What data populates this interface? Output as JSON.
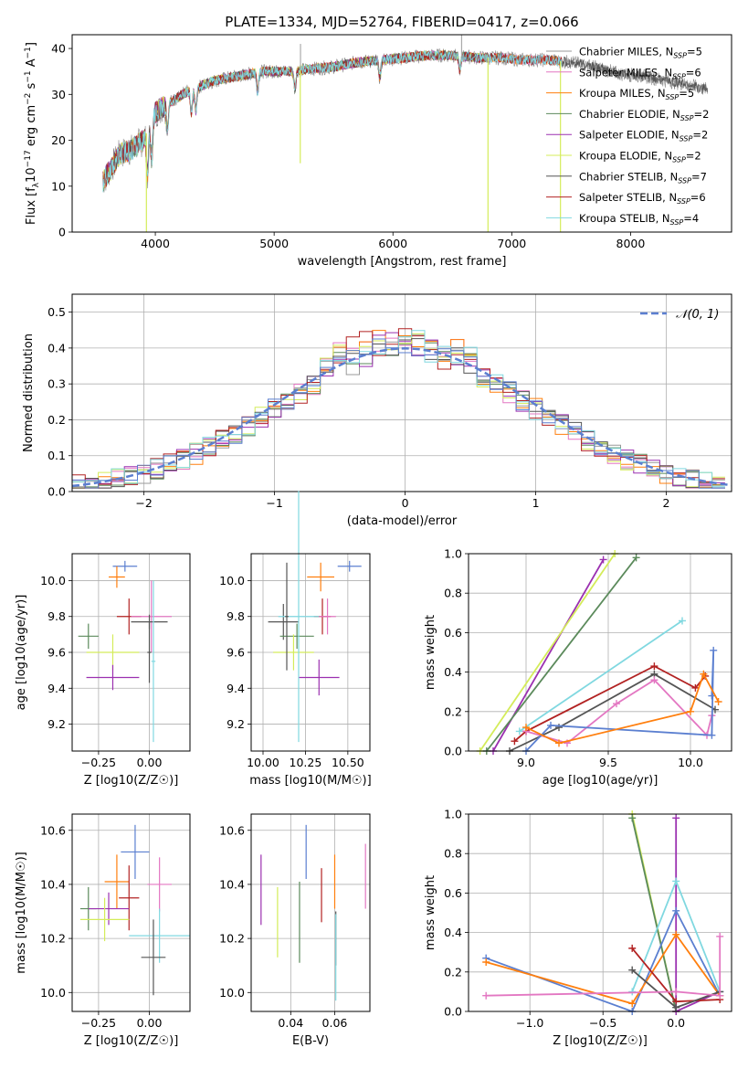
{
  "figure_title": "PLATE=1334, MJD=52764, FIBERID=0417, z=0.066",
  "colors": {
    "Chabrier MILES": "#999999",
    "Salpeter MILES": "#e377c2",
    "Kroupa MILES": "#ff7f0e",
    "Chabrier ELODIE": "#5b8a5b",
    "Salpeter ELODIE": "#9b30b0",
    "Kroupa ELODIE": "#d4ec5a",
    "Chabrier STELIB": "#555555",
    "Salpeter STELIB": "#b22222",
    "Kroupa STELIB": "#80d8e0",
    "blue": "#5b7fd0",
    "orange": "#e07010"
  },
  "chart_data": [
    {
      "id": "spectrum",
      "type": "line",
      "title": "PLATE=1334, MJD=52764, FIBERID=0417, z=0.066",
      "xlabel": "wavelength [Angstrom, rest frame]",
      "ylabel": "Flux [f_λ 10^-17 erg cm^-2 s^-1 A^-1]",
      "xlim": [
        3300,
        8850
      ],
      "ylim": [
        0,
        43
      ],
      "xticks": [
        4000,
        5000,
        6000,
        7000,
        8000
      ],
      "yticks": [
        0,
        10,
        20,
        30,
        40
      ],
      "legend": "top-right",
      "continuum": {
        "x": [
          3560,
          3700,
          3800,
          3900,
          4000,
          4100,
          4300,
          4500,
          4700,
          4900,
          5100,
          5300,
          5500,
          5700,
          5900,
          6100,
          6300,
          6500,
          6700,
          6900,
          7100,
          7300,
          7500,
          7700,
          7900,
          8100,
          8300,
          8500,
          8650
        ],
        "y": [
          11,
          17,
          18,
          20,
          26,
          28,
          31,
          33,
          34,
          35,
          35,
          35.5,
          36,
          37,
          37.5,
          38,
          38.5,
          38.5,
          38,
          38,
          37.5,
          37.5,
          37,
          36,
          34.5,
          34,
          33,
          32,
          31
        ]
      },
      "absorption_features": [
        {
          "x": 3934,
          "depth": 10
        },
        {
          "x": 3969,
          "depth": 8
        },
        {
          "x": 4102,
          "depth": 6
        },
        {
          "x": 4304,
          "depth": 5
        },
        {
          "x": 4341,
          "depth": 5
        },
        {
          "x": 4861,
          "depth": 4
        },
        {
          "x": 5175,
          "depth": 4
        },
        {
          "x": 5890,
          "depth": 4
        },
        {
          "x": 6563,
          "depth": 3
        }
      ],
      "spikes": [
        {
          "x": 3925,
          "y": 0
        },
        {
          "x": 5220,
          "y": 15
        },
        {
          "x": 5222,
          "y": 41
        },
        {
          "x": 6800,
          "y": 0
        },
        {
          "x": 7410,
          "y": 0
        },
        {
          "x": 6578,
          "y": 43
        }
      ],
      "series": [
        {
          "name": "Chabrier MILES, N_SSP=5",
          "label_main": "Chabrier MILES, N",
          "label_sub": "SSP",
          "label_end": "=5"
        },
        {
          "name": "Salpeter MILES, N_SSP=6",
          "label_main": "Salpeter MILES, N",
          "label_sub": "SSP",
          "label_end": "=6"
        },
        {
          "name": "Kroupa MILES, N_SSP=5",
          "label_main": "Kroupa MILES, N",
          "label_sub": "SSP",
          "label_end": "=5"
        },
        {
          "name": "Chabrier ELODIE, N_SSP=2",
          "label_main": "Chabrier ELODIE, N",
          "label_sub": "SSP",
          "label_end": "=2"
        },
        {
          "name": "Salpeter ELODIE, N_SSP=2",
          "label_main": "Salpeter ELODIE, N",
          "label_sub": "SSP",
          "label_end": "=2"
        },
        {
          "name": "Kroupa ELODIE, N_SSP=2",
          "label_main": "Kroupa ELODIE, N",
          "label_sub": "SSP",
          "label_end": "=2"
        },
        {
          "name": "Chabrier STELIB, N_SSP=7",
          "label_main": "Chabrier STELIB, N",
          "label_sub": "SSP",
          "label_end": "=7"
        },
        {
          "name": "Salpeter STELIB, N_SSP=6",
          "label_main": "Salpeter STELIB, N",
          "label_sub": "SSP",
          "label_end": "=6"
        },
        {
          "name": "Kroupa STELIB, N_SSP=4",
          "label_main": "Kroupa STELIB, N",
          "label_sub": "SSP",
          "label_end": "=4"
        }
      ]
    },
    {
      "id": "residuals",
      "type": "histogram",
      "xlabel": "(data-model)/error",
      "ylabel": "Normed distribution",
      "xlim": [
        -2.55,
        2.5
      ],
      "ylim": [
        0,
        0.55
      ],
      "xticks": [
        -2,
        -1,
        0,
        1,
        2
      ],
      "yticks": [
        0.0,
        0.1,
        0.2,
        0.3,
        0.4,
        0.5
      ],
      "legend": "top-right",
      "reference": {
        "name": "𝒩(0, 1)",
        "mean": 0,
        "sigma": 1
      },
      "bin_width": 0.1,
      "bin_start": -2.55,
      "hist_colors": [
        "#999999",
        "#e377c2",
        "#ff7f0e",
        "#5b8a5b",
        "#9b30b0",
        "#d4ec5a",
        "#555555",
        "#b22222",
        "#80d8e0",
        "#5b7fd0"
      ],
      "envelope_peak": [
        0.5,
        0.45,
        0.49,
        0.52,
        0.49,
        0.48,
        0.48,
        0.5,
        0.47,
        0.46
      ]
    },
    {
      "id": "age-vs-Z",
      "type": "errorbar",
      "xlabel": "Z [log10(Z/Z☉)]",
      "ylabel": "age [log10(age/yr)]",
      "xlim": [
        -0.38,
        0.2
      ],
      "ylim": [
        9.05,
        10.15
      ],
      "xticks": [
        -0.25,
        0.0
      ],
      "xticklabels": [
        "−0.25",
        "0.00"
      ],
      "yticks": [
        9.2,
        9.4,
        9.6,
        9.8,
        10.0
      ],
      "points": [
        {
          "x": -0.12,
          "y": 10.08,
          "xerr": 0.06,
          "yerr": 0.03,
          "color": "#5b7fd0"
        },
        {
          "x": -0.16,
          "y": 10.02,
          "xerr": 0.04,
          "yerr": 0.06,
          "color": "#ff7f0e"
        },
        {
          "x": -0.1,
          "y": 9.8,
          "xerr": 0.06,
          "yerr": 0.1,
          "color": "#b22222"
        },
        {
          "x": 0.01,
          "y": 9.8,
          "xerr": 0.1,
          "yerr": 0.2,
          "color": "#e377c2"
        },
        {
          "x": 0.0,
          "y": 9.77,
          "xerr": 0.09,
          "yerr": 0.04,
          "color": "#555555"
        },
        {
          "x": -0.3,
          "y": 9.69,
          "xerr": 0.05,
          "yerr": 0.07,
          "color": "#5b8a5b"
        },
        {
          "x": -0.18,
          "y": 9.6,
          "xerr": 0.13,
          "yerr": 0.1,
          "color": "#d4ec5a"
        },
        {
          "x": -0.18,
          "y": 9.46,
          "xerr": 0.13,
          "yerr": 0.07,
          "color": "#9b30b0"
        },
        {
          "x": 0.02,
          "y": 9.55,
          "xerr": 0.01,
          "yerr": 0.45,
          "color": "#80d8e0"
        },
        {
          "x": 0.0,
          "y": 9.6,
          "xerr": 0.01,
          "yerr": 0.17,
          "color": "#555555"
        }
      ]
    },
    {
      "id": "age-vs-mass",
      "type": "errorbar",
      "xlabel": "mass [log10(M/M☉)]",
      "ylabel": "",
      "xlim": [
        9.93,
        10.63
      ],
      "ylim": [
        9.05,
        10.15
      ],
      "xticks": [
        10.0,
        10.25,
        10.5
      ],
      "xticklabels": [
        "10.00",
        "10.25",
        "10.50"
      ],
      "yticks": [
        9.2,
        9.4,
        9.6,
        9.8,
        10.0
      ],
      "points": [
        {
          "x": 10.51,
          "y": 10.08,
          "xerr": 0.07,
          "yerr": 0.03,
          "color": "#5b7fd0"
        },
        {
          "x": 10.34,
          "y": 10.02,
          "xerr": 0.08,
          "yerr": 0.08,
          "color": "#ff7f0e"
        },
        {
          "x": 10.35,
          "y": 9.8,
          "xerr": 0.05,
          "yerr": 0.1,
          "color": "#b22222"
        },
        {
          "x": 10.38,
          "y": 9.8,
          "xerr": 0.05,
          "yerr": 0.1,
          "color": "#e377c2"
        },
        {
          "x": 10.12,
          "y": 9.77,
          "xerr": 0.09,
          "yerr": 0.1,
          "color": "#555555"
        },
        {
          "x": 10.2,
          "y": 9.69,
          "xerr": 0.1,
          "yerr": 0.07,
          "color": "#5b8a5b"
        },
        {
          "x": 10.18,
          "y": 9.6,
          "xerr": 0.12,
          "yerr": 0.1,
          "color": "#d4ec5a"
        },
        {
          "x": 10.33,
          "y": 9.46,
          "xerr": 0.12,
          "yerr": 0.1,
          "color": "#9b30b0"
        },
        {
          "x": 10.21,
          "y": 9.8,
          "xerr": 0.12,
          "yerr": 0.7,
          "color": "#80d8e0"
        },
        {
          "x": 10.14,
          "y": 9.8,
          "xerr": 0.01,
          "yerr": 0.3,
          "color": "#555555"
        }
      ]
    },
    {
      "id": "weight-vs-age",
      "type": "line",
      "xlabel": "age [log10(age/yr)]",
      "ylabel": "mass weight",
      "xlim": [
        8.65,
        10.25
      ],
      "ylim": [
        0,
        1.0
      ],
      "xticks": [
        9.0,
        9.5,
        10.0
      ],
      "xticklabels": [
        "9.0",
        "9.5",
        "10.0"
      ],
      "yticks": [
        0.0,
        0.2,
        0.4,
        0.6,
        0.8,
        1.0
      ],
      "series": [
        {
          "color": "#9b30b0",
          "x": [
            8.8,
            9.47
          ],
          "y": [
            0.0,
            0.97
          ]
        },
        {
          "color": "#d4ec5a",
          "x": [
            8.72,
            9.54
          ],
          "y": [
            0.0,
            1.0
          ]
        },
        {
          "color": "#5b8a5b",
          "x": [
            8.76,
            9.67
          ],
          "y": [
            0.0,
            0.98
          ]
        },
        {
          "color": "#80d8e0",
          "x": [
            8.96,
            9.95
          ],
          "y": [
            0.1,
            0.66
          ]
        },
        {
          "color": "#b22222",
          "x": [
            8.93,
            9.0,
            9.78,
            10.03,
            10.09
          ],
          "y": [
            0.05,
            0.1,
            0.43,
            0.32,
            0.38
          ]
        },
        {
          "color": "#555555",
          "x": [
            8.9,
            9.2,
            9.78,
            10.15
          ],
          "y": [
            0.0,
            0.12,
            0.39,
            0.21
          ]
        },
        {
          "color": "#e377c2",
          "x": [
            9.0,
            9.25,
            9.55,
            9.78,
            10.1,
            10.13
          ],
          "y": [
            0.1,
            0.04,
            0.24,
            0.36,
            0.08,
            0.18
          ]
        },
        {
          "color": "#5b7fd0",
          "x": [
            9.0,
            9.15,
            10.13,
            10.14,
            10.13
          ],
          "y": [
            0.0,
            0.13,
            0.08,
            0.51,
            0.28
          ]
        },
        {
          "color": "#ff7f0e",
          "x": [
            9.0,
            9.2,
            10.0,
            10.08,
            10.17
          ],
          "y": [
            0.12,
            0.04,
            0.2,
            0.39,
            0.25
          ]
        }
      ]
    },
    {
      "id": "mass-vs-Z",
      "type": "errorbar",
      "xlabel": "Z [log10(Z/Z☉)]",
      "ylabel": "mass [log10(M/M☉)]",
      "xlim": [
        -0.38,
        0.2
      ],
      "ylim": [
        9.93,
        10.66
      ],
      "xticks": [
        -0.25,
        0.0
      ],
      "xticklabels": [
        "−0.25",
        "0.00"
      ],
      "yticks": [
        10.0,
        10.2,
        10.4,
        10.6
      ],
      "points": [
        {
          "x": -0.07,
          "y": 10.52,
          "xerr": 0.07,
          "yerr": 0.1,
          "color": "#5b7fd0"
        },
        {
          "x": -0.16,
          "y": 10.41,
          "xerr": 0.06,
          "yerr": 0.1,
          "color": "#ff7f0e"
        },
        {
          "x": 0.05,
          "y": 10.4,
          "xerr": 0.06,
          "yerr": 0.1,
          "color": "#e377c2"
        },
        {
          "x": -0.1,
          "y": 10.35,
          "xerr": 0.05,
          "yerr": 0.12,
          "color": "#b22222"
        },
        {
          "x": -0.3,
          "y": 10.31,
          "xerr": 0.04,
          "yerr": 0.08,
          "color": "#5b8a5b"
        },
        {
          "x": -0.2,
          "y": 10.31,
          "xerr": 0.1,
          "yerr": 0.06,
          "color": "#9b30b0"
        },
        {
          "x": -0.22,
          "y": 10.27,
          "xerr": 0.12,
          "yerr": 0.08,
          "color": "#d4ec5a"
        },
        {
          "x": 0.05,
          "y": 10.21,
          "xerr": 0.15,
          "yerr": 0.1,
          "color": "#80d8e0"
        },
        {
          "x": 0.02,
          "y": 10.13,
          "xerr": 0.06,
          "yerr": 0.14,
          "color": "#555555"
        }
      ]
    },
    {
      "id": "mass-vs-EBV",
      "type": "errorbar",
      "xlabel": "E(B-V)",
      "ylabel": "",
      "xlim": [
        0.022,
        0.076
      ],
      "ylim": [
        9.93,
        10.66
      ],
      "xticks": [
        0.04,
        0.06
      ],
      "xticklabels": [
        "0.04",
        "0.06"
      ],
      "yticks": [
        10.0,
        10.2,
        10.4,
        10.6
      ],
      "points": [
        {
          "x": 0.0265,
          "y": 10.38,
          "xerr": 0,
          "yerr": 0.13,
          "color": "#9b30b0"
        },
        {
          "x": 0.034,
          "y": 10.26,
          "xerr": 0,
          "yerr": 0.13,
          "color": "#d4ec5a"
        },
        {
          "x": 0.044,
          "y": 10.26,
          "xerr": 0,
          "yerr": 0.15,
          "color": "#5b8a5b"
        },
        {
          "x": 0.047,
          "y": 10.52,
          "xerr": 0,
          "yerr": 0.1,
          "color": "#5b7fd0"
        },
        {
          "x": 0.054,
          "y": 10.36,
          "xerr": 0,
          "yerr": 0.1,
          "color": "#b22222"
        },
        {
          "x": 0.06,
          "y": 10.41,
          "xerr": 0,
          "yerr": 0.1,
          "color": "#ff7f0e"
        },
        {
          "x": 0.0605,
          "y": 10.2,
          "xerr": 0,
          "yerr": 0.1,
          "color": "#555555"
        },
        {
          "x": 0.0605,
          "y": 10.13,
          "xerr": 0,
          "yerr": 0.16,
          "color": "#80d8e0"
        },
        {
          "x": 0.074,
          "y": 10.43,
          "xerr": 0,
          "yerr": 0.12,
          "color": "#e377c2"
        }
      ]
    },
    {
      "id": "weight-vs-Z",
      "type": "line",
      "xlabel": "Z [log10(Z/Z☉)]",
      "ylabel": "mass weight",
      "xlim": [
        -1.42,
        0.38
      ],
      "ylim": [
        0,
        1.0
      ],
      "xticks": [
        -1.0,
        -0.5,
        0.0
      ],
      "xticklabels": [
        "−1.0",
        "−0.5",
        "0.0"
      ],
      "yticks": [
        0.0,
        0.2,
        0.4,
        0.6,
        0.8,
        1.0
      ],
      "series": [
        {
          "color": "#d4ec5a",
          "x": [
            -0.3,
            0.0
          ],
          "y": [
            1.0,
            0.0
          ]
        },
        {
          "color": "#5b8a5b",
          "x": [
            -0.3,
            0.0
          ],
          "y": [
            0.98,
            0.0
          ]
        },
        {
          "color": "#9b30b0",
          "x": [
            0.0,
            0.0,
            0.3
          ],
          "y": [
            0.98,
            0.0,
            0.1
          ]
        },
        {
          "color": "#80d8e0",
          "x": [
            -0.3,
            0.0,
            0.3
          ],
          "y": [
            0.1,
            0.66,
            0.1
          ]
        },
        {
          "color": "#5b7fd0",
          "x": [
            -1.3,
            -0.3,
            0.0,
            0.3
          ],
          "y": [
            0.27,
            0.0,
            0.51,
            0.08
          ]
        },
        {
          "color": "#ff7f0e",
          "x": [
            -1.3,
            -0.3,
            0.0,
            0.3
          ],
          "y": [
            0.25,
            0.04,
            0.39,
            0.08
          ]
        },
        {
          "color": "#b22222",
          "x": [
            -0.3,
            0.0,
            0.3
          ],
          "y": [
            0.32,
            0.05,
            0.06
          ]
        },
        {
          "color": "#555555",
          "x": [
            -0.3,
            0.0,
            0.3
          ],
          "y": [
            0.21,
            0.02,
            0.1
          ]
        },
        {
          "color": "#e377c2",
          "x": [
            -1.3,
            0.0,
            0.3,
            0.3
          ],
          "y": [
            0.08,
            0.1,
            0.08,
            0.38
          ]
        }
      ]
    }
  ]
}
